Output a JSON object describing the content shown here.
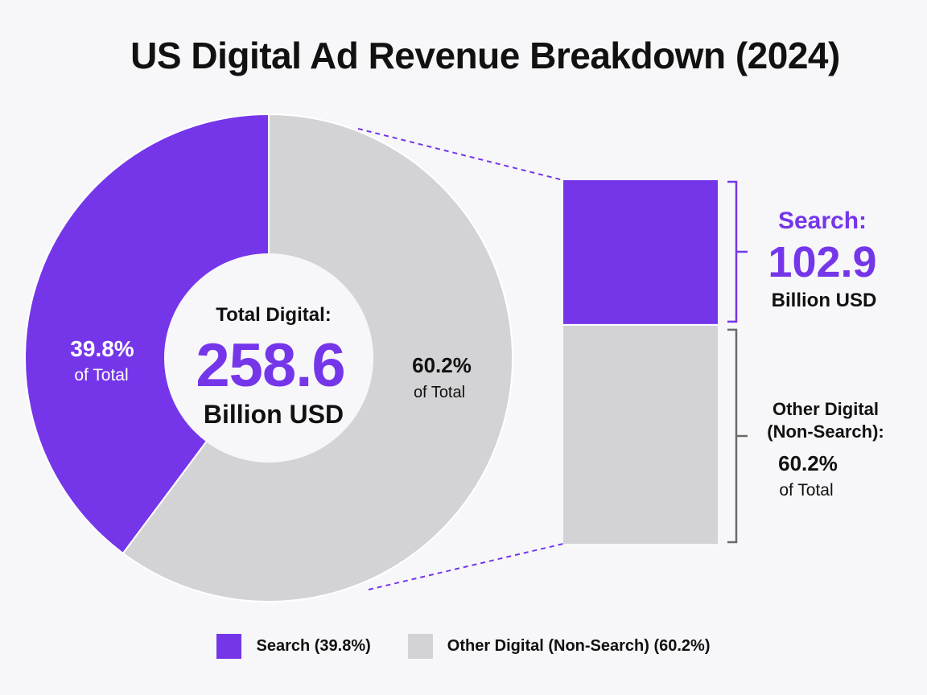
{
  "chart_data": {
    "type": "pie",
    "title": "US Digital Ad Revenue Breakdown (2024)",
    "total": {
      "label": "Total Digital:",
      "value": "258.6",
      "unit": "Billion USD"
    },
    "slices": [
      {
        "name": "Search",
        "value": 39.8,
        "pct_label": "39.8%",
        "sub_label": "of Total",
        "color": "#7536ea"
      },
      {
        "name": "Other Digital (Non-Search)",
        "value": 60.2,
        "pct_label": "60.2%",
        "sub_label": "of Total",
        "color": "#d3d3d5"
      }
    ],
    "breakout": {
      "search": {
        "title": "Search:",
        "value": "102.9",
        "unit": "Billion USD"
      },
      "other": {
        "title_line1": "Other Digital",
        "title_line2": "(Non-Search):",
        "value": "60.2%",
        "unit": "of Total"
      }
    },
    "legend": [
      {
        "label": "Search (39.8%)",
        "color": "#7536ea"
      },
      {
        "label": "Other Digital (Non-Search) (60.2%)",
        "color": "#d3d3d5"
      }
    ],
    "legend_position": "bottom-center"
  }
}
